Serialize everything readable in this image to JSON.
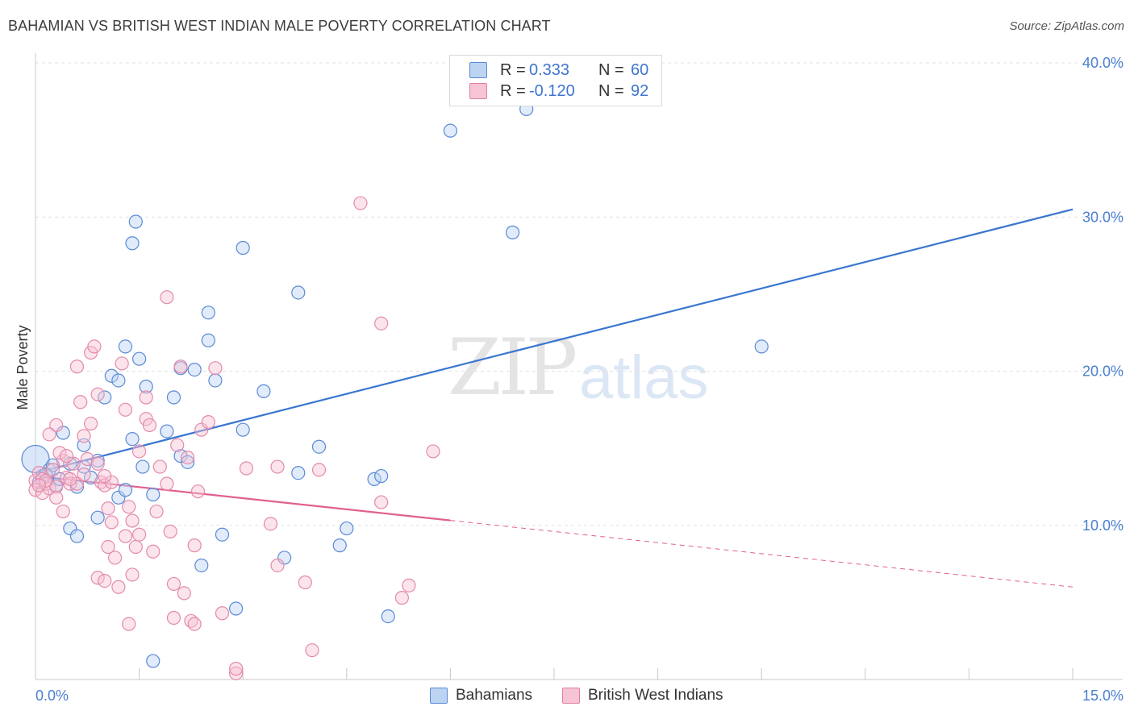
{
  "title": "BAHAMIAN VS BRITISH WEST INDIAN MALE POVERTY CORRELATION CHART",
  "source": "Source: ZipAtlas.com",
  "watermark": {
    "zip": "ZIP",
    "atlas": "atlas"
  },
  "legend": {
    "rows": [
      {
        "r_label": "R =",
        "r_value": "0.333",
        "n_label": "N =",
        "n_value": "60"
      },
      {
        "r_label": "R =",
        "r_value": "-0.120",
        "n_label": "N =",
        "n_value": "92"
      }
    ]
  },
  "bottom_legend": {
    "series1": "Bahamians",
    "series2": "British West Indians"
  },
  "colors": {
    "blue": "#3a76d0",
    "blue_fill": "#bcd3f2",
    "pink": "#e06090",
    "pink_fill": "#f6c4d5",
    "tick": "#4a7fd0"
  },
  "chart_data": {
    "type": "scatter",
    "xlabel": "",
    "ylabel": "Male Poverty",
    "xlim": [
      0,
      15
    ],
    "ylim": [
      0,
      40
    ],
    "x_tick_labels": [
      "0.0%",
      "15.0%"
    ],
    "y_ticks": [
      10,
      20,
      30,
      40
    ],
    "y_tick_labels": [
      "10.0%",
      "20.0%",
      "30.0%",
      "40.0%"
    ],
    "grid": true,
    "series": [
      {
        "name": "Bahamians",
        "r": 0.333,
        "n": 60,
        "trend": {
          "x0": 0,
          "y0": 13.4,
          "x1": 15,
          "y1": 30.5,
          "solid_to": 15
        },
        "points": [
          [
            0.0,
            14.3
          ],
          [
            0.1,
            13.2
          ],
          [
            0.2,
            13.6
          ],
          [
            0.25,
            13.9
          ],
          [
            0.3,
            12.6
          ],
          [
            0.4,
            16.0
          ],
          [
            0.5,
            14.0
          ],
          [
            0.5,
            9.8
          ],
          [
            0.6,
            9.3
          ],
          [
            0.7,
            15.2
          ],
          [
            0.7,
            13.8
          ],
          [
            0.8,
            13.1
          ],
          [
            0.9,
            14.2
          ],
          [
            0.9,
            10.5
          ],
          [
            1.0,
            18.3
          ],
          [
            1.1,
            19.7
          ],
          [
            1.2,
            11.8
          ],
          [
            1.2,
            19.4
          ],
          [
            1.3,
            21.6
          ],
          [
            1.3,
            12.3
          ],
          [
            1.4,
            15.6
          ],
          [
            1.4,
            28.3
          ],
          [
            1.45,
            29.7
          ],
          [
            1.5,
            20.8
          ],
          [
            1.55,
            13.8
          ],
          [
            1.6,
            19.0
          ],
          [
            1.7,
            12.0
          ],
          [
            1.7,
            1.2
          ],
          [
            1.9,
            16.1
          ],
          [
            2.0,
            18.3
          ],
          [
            2.1,
            14.5
          ],
          [
            2.1,
            20.2
          ],
          [
            2.2,
            14.1
          ],
          [
            2.3,
            20.1
          ],
          [
            2.4,
            7.4
          ],
          [
            2.5,
            22.0
          ],
          [
            2.5,
            23.8
          ],
          [
            2.6,
            19.4
          ],
          [
            2.7,
            9.4
          ],
          [
            2.9,
            4.6
          ],
          [
            3.0,
            16.2
          ],
          [
            3.0,
            28.0
          ],
          [
            3.3,
            18.7
          ],
          [
            3.6,
            7.9
          ],
          [
            3.8,
            25.1
          ],
          [
            3.8,
            13.4
          ],
          [
            4.1,
            15.1
          ],
          [
            4.4,
            8.7
          ],
          [
            4.5,
            9.8
          ],
          [
            4.9,
            13.0
          ],
          [
            5.0,
            13.2
          ],
          [
            5.1,
            4.1
          ],
          [
            6.0,
            35.6
          ],
          [
            6.9,
            29.0
          ],
          [
            7.1,
            37.0
          ],
          [
            10.5,
            21.6
          ],
          [
            0.05,
            12.8
          ],
          [
            0.15,
            13.3
          ],
          [
            0.35,
            13.0
          ],
          [
            0.6,
            12.5
          ]
        ]
      },
      {
        "name": "British West Indians",
        "r": -0.12,
        "n": 92,
        "trend": {
          "x0": 0,
          "y0": 13.2,
          "x1": 15,
          "y1": 6.0,
          "solid_to": 6.0
        },
        "points": [
          [
            0.0,
            12.9
          ],
          [
            0.0,
            12.3
          ],
          [
            0.05,
            13.4
          ],
          [
            0.1,
            12.1
          ],
          [
            0.1,
            13.0
          ],
          [
            0.15,
            12.7
          ],
          [
            0.2,
            12.4
          ],
          [
            0.25,
            13.6
          ],
          [
            0.3,
            16.5
          ],
          [
            0.3,
            12.5
          ],
          [
            0.4,
            10.9
          ],
          [
            0.4,
            14.2
          ],
          [
            0.45,
            13.1
          ],
          [
            0.5,
            12.7
          ],
          [
            0.55,
            14.0
          ],
          [
            0.6,
            20.3
          ],
          [
            0.6,
            12.7
          ],
          [
            0.65,
            18.0
          ],
          [
            0.7,
            15.8
          ],
          [
            0.75,
            14.3
          ],
          [
            0.8,
            21.2
          ],
          [
            0.8,
            16.6
          ],
          [
            0.85,
            21.6
          ],
          [
            0.9,
            18.5
          ],
          [
            0.9,
            14.0
          ],
          [
            0.9,
            6.6
          ],
          [
            0.95,
            12.8
          ],
          [
            1.0,
            12.6
          ],
          [
            1.0,
            6.4
          ],
          [
            1.05,
            11.1
          ],
          [
            1.05,
            8.6
          ],
          [
            1.1,
            10.2
          ],
          [
            1.1,
            12.8
          ],
          [
            1.15,
            7.9
          ],
          [
            1.2,
            6.0
          ],
          [
            1.25,
            20.5
          ],
          [
            1.3,
            9.3
          ],
          [
            1.3,
            17.5
          ],
          [
            1.35,
            11.2
          ],
          [
            1.35,
            3.6
          ],
          [
            1.4,
            10.3
          ],
          [
            1.4,
            6.8
          ],
          [
            1.45,
            8.6
          ],
          [
            1.5,
            9.4
          ],
          [
            1.5,
            14.8
          ],
          [
            1.6,
            18.3
          ],
          [
            1.6,
            16.9
          ],
          [
            1.65,
            16.5
          ],
          [
            1.7,
            8.3
          ],
          [
            1.75,
            10.9
          ],
          [
            1.8,
            13.8
          ],
          [
            1.9,
            24.8
          ],
          [
            1.95,
            9.6
          ],
          [
            2.0,
            6.2
          ],
          [
            2.0,
            4.0
          ],
          [
            2.05,
            15.2
          ],
          [
            2.1,
            20.3
          ],
          [
            2.15,
            5.6
          ],
          [
            2.2,
            14.4
          ],
          [
            2.25,
            3.8
          ],
          [
            2.3,
            3.6
          ],
          [
            2.3,
            8.7
          ],
          [
            2.35,
            12.2
          ],
          [
            2.4,
            16.2
          ],
          [
            2.5,
            16.7
          ],
          [
            2.6,
            20.2
          ],
          [
            2.7,
            4.3
          ],
          [
            2.9,
            0.4
          ],
          [
            2.9,
            0.7
          ],
          [
            3.05,
            13.7
          ],
          [
            3.4,
            10.1
          ],
          [
            3.5,
            7.4
          ],
          [
            3.5,
            13.8
          ],
          [
            3.9,
            6.3
          ],
          [
            4.0,
            1.9
          ],
          [
            4.1,
            13.6
          ],
          [
            4.7,
            30.9
          ],
          [
            5.0,
            11.5
          ],
          [
            5.0,
            23.1
          ],
          [
            5.3,
            5.3
          ],
          [
            5.4,
            6.1
          ],
          [
            5.75,
            14.8
          ],
          [
            0.2,
            15.9
          ],
          [
            0.35,
            14.7
          ],
          [
            0.5,
            13.0
          ],
          [
            0.7,
            13.3
          ],
          [
            0.3,
            11.8
          ],
          [
            1.9,
            12.7
          ],
          [
            0.15,
            12.9
          ],
          [
            0.45,
            14.5
          ],
          [
            1.0,
            13.2
          ],
          [
            0.05,
            12.6
          ]
        ]
      }
    ]
  }
}
